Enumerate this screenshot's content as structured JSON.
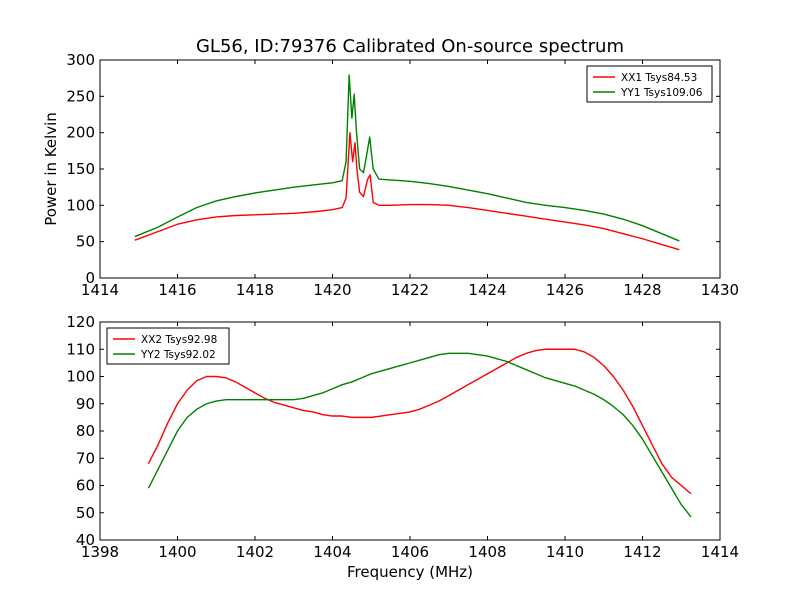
{
  "chart_data": [
    {
      "type": "line",
      "title": "GL56, ID:79376 Calibrated On-source spectrum",
      "xlabel": "",
      "ylabel": "Power in Kelvin",
      "xlim": [
        1414,
        1430
      ],
      "ylim": [
        0,
        300
      ],
      "xticks": [
        1414,
        1416,
        1418,
        1420,
        1422,
        1424,
        1426,
        1428,
        1430
      ],
      "yticks": [
        0,
        50,
        100,
        150,
        200,
        250,
        300
      ],
      "grid": false,
      "legend": "top-right",
      "series": [
        {
          "name": "XX1 Tsys84.53",
          "color": "#ff0000",
          "x": [
            1414.9,
            1415.5,
            1416.0,
            1416.5,
            1417.0,
            1417.5,
            1418.0,
            1418.5,
            1419.0,
            1419.5,
            1420.0,
            1420.25,
            1420.35,
            1420.45,
            1420.52,
            1420.58,
            1420.63,
            1420.7,
            1420.8,
            1420.9,
            1420.97,
            1421.05,
            1421.2,
            1421.5,
            1422.0,
            1422.5,
            1423.0,
            1423.5,
            1424.0,
            1424.5,
            1425.0,
            1425.5,
            1426.0,
            1426.5,
            1427.0,
            1427.5,
            1428.0,
            1428.5,
            1428.95
          ],
          "y": [
            52,
            64,
            74,
            80,
            84,
            86,
            87,
            88,
            89,
            91,
            94,
            97,
            110,
            200,
            160,
            186,
            150,
            118,
            112,
            135,
            142,
            104,
            100,
            100,
            101,
            101,
            100,
            97,
            93,
            89,
            85,
            81,
            77,
            73,
            68,
            61,
            54,
            46,
            39
          ]
        },
        {
          "name": "YY1 Tsys109.06",
          "color": "#008000",
          "x": [
            1414.9,
            1415.5,
            1416.0,
            1416.5,
            1417.0,
            1417.5,
            1418.0,
            1418.5,
            1419.0,
            1419.5,
            1420.0,
            1420.25,
            1420.35,
            1420.43,
            1420.5,
            1420.56,
            1420.62,
            1420.7,
            1420.8,
            1420.9,
            1420.96,
            1421.05,
            1421.2,
            1421.5,
            1422.0,
            1422.5,
            1423.0,
            1423.5,
            1424.0,
            1424.5,
            1425.0,
            1425.5,
            1426.0,
            1426.5,
            1427.0,
            1427.5,
            1428.0,
            1428.5,
            1428.95
          ],
          "y": [
            57,
            70,
            84,
            97,
            106,
            112,
            117,
            121,
            125,
            128,
            131,
            134,
            160,
            279,
            220,
            253,
            200,
            150,
            145,
            175,
            194,
            150,
            136,
            135,
            133,
            130,
            126,
            121,
            116,
            110,
            104,
            100,
            97,
            93,
            88,
            81,
            72,
            61,
            51
          ]
        }
      ]
    },
    {
      "type": "line",
      "title": "",
      "xlabel": "Frequency (MHz)",
      "ylabel": "",
      "xlim": [
        1398,
        1414
      ],
      "ylim": [
        40,
        120
      ],
      "xticks": [
        1398,
        1400,
        1402,
        1404,
        1406,
        1408,
        1410,
        1412,
        1414
      ],
      "yticks": [
        40,
        50,
        60,
        70,
        80,
        90,
        100,
        110,
        120
      ],
      "grid": false,
      "legend": "top-left",
      "series": [
        {
          "name": "XX2 Tsys92.98",
          "color": "#ff0000",
          "x": [
            1399.25,
            1399.5,
            1399.75,
            1400.0,
            1400.25,
            1400.5,
            1400.75,
            1401.0,
            1401.25,
            1401.5,
            1401.75,
            1402.0,
            1402.25,
            1402.5,
            1402.75,
            1403.0,
            1403.25,
            1403.5,
            1403.75,
            1404.0,
            1404.25,
            1404.5,
            1404.75,
            1405.0,
            1405.25,
            1405.5,
            1405.75,
            1406.0,
            1406.25,
            1406.5,
            1406.75,
            1407.0,
            1407.25,
            1407.5,
            1407.75,
            1408.0,
            1408.25,
            1408.5,
            1408.75,
            1409.0,
            1409.25,
            1409.5,
            1409.75,
            1410.0,
            1410.25,
            1410.5,
            1410.75,
            1411.0,
            1411.25,
            1411.5,
            1411.75,
            1412.0,
            1412.25,
            1412.5,
            1412.75,
            1413.0,
            1413.25
          ],
          "y": [
            68,
            75,
            83,
            90,
            95,
            98.5,
            100,
            100,
            99.5,
            98,
            96,
            94,
            92,
            90.5,
            89.5,
            88.5,
            87.5,
            87,
            86,
            85.5,
            85.5,
            85,
            85,
            85,
            85.5,
            86,
            86.5,
            87,
            88,
            89.5,
            91,
            93,
            95,
            97,
            99,
            101,
            103,
            105,
            107,
            108.5,
            109.5,
            110,
            110,
            110,
            110,
            109,
            107,
            104,
            100,
            95,
            89,
            82,
            75,
            68,
            63,
            60,
            57
          ]
        },
        {
          "name": "YY2 Tsys92.02",
          "color": "#008000",
          "x": [
            1399.25,
            1399.5,
            1399.75,
            1400.0,
            1400.25,
            1400.5,
            1400.75,
            1401.0,
            1401.25,
            1401.5,
            1401.75,
            1402.0,
            1402.25,
            1402.5,
            1402.75,
            1403.0,
            1403.25,
            1403.5,
            1403.75,
            1404.0,
            1404.25,
            1404.5,
            1404.75,
            1405.0,
            1405.25,
            1405.5,
            1405.75,
            1406.0,
            1406.25,
            1406.5,
            1406.75,
            1407.0,
            1407.25,
            1407.5,
            1407.75,
            1408.0,
            1408.25,
            1408.5,
            1408.75,
            1409.0,
            1409.25,
            1409.5,
            1409.75,
            1410.0,
            1410.25,
            1410.5,
            1410.75,
            1411.0,
            1411.25,
            1411.5,
            1411.75,
            1412.0,
            1412.25,
            1412.5,
            1412.75,
            1413.0,
            1413.25
          ],
          "y": [
            59,
            66,
            73,
            80,
            85,
            88,
            90,
            91,
            91.5,
            91.5,
            91.5,
            91.5,
            91.5,
            91.5,
            91.5,
            91.5,
            92,
            93,
            94,
            95.5,
            97,
            98,
            99.5,
            101,
            102,
            103,
            104,
            105,
            106,
            107,
            108,
            108.5,
            108.5,
            108.5,
            108,
            107.5,
            106.5,
            105.5,
            104,
            102.5,
            101,
            99.5,
            98.5,
            97.5,
            96.5,
            95,
            93.5,
            91.5,
            89,
            86,
            82,
            77,
            71,
            65,
            59,
            53,
            48.5
          ]
        }
      ]
    }
  ]
}
